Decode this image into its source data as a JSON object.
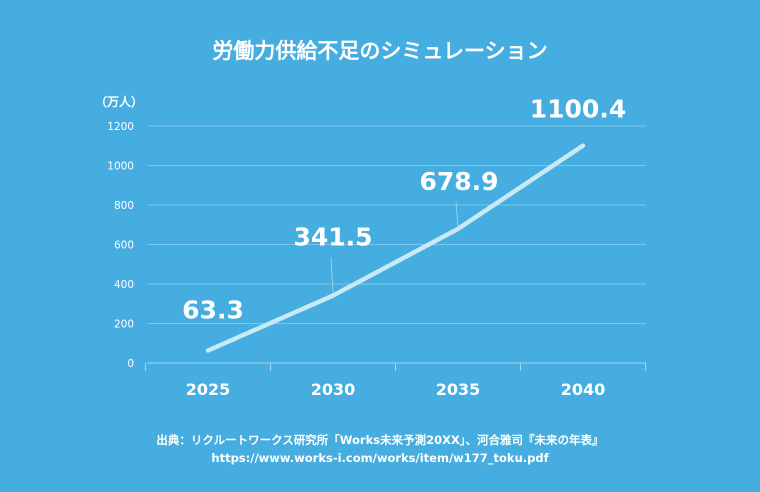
{
  "chart_data": {
    "type": "line",
    "title": "労働力供給不足のシミュレーション",
    "ylabel": "（万人）",
    "xlabel": "",
    "categories": [
      "2025",
      "2030",
      "2035",
      "2040"
    ],
    "series": [
      {
        "name": "労働力供給不足",
        "values": [
          63.3,
          341.5,
          678.9,
          1100.4
        ]
      }
    ],
    "data_labels": [
      "63.3",
      "341.5",
      "678.9",
      "1100.4"
    ],
    "ylim": [
      0,
      1200
    ],
    "yticks": [
      0,
      200,
      400,
      600,
      800,
      1000,
      1200
    ],
    "grid": true,
    "legend": "none",
    "colors": {
      "background": "#45ADDF",
      "line": "#C8E9F6",
      "text": "#FFFFFF",
      "grid": "#7CC6E9"
    }
  },
  "source": {
    "line1": "出典：リクルートワークス研究所「Works未来予測20XX」、河合雅司『未来の年表』",
    "line2": "https://www.works-i.com/works/item/w177_toku.pdf"
  }
}
